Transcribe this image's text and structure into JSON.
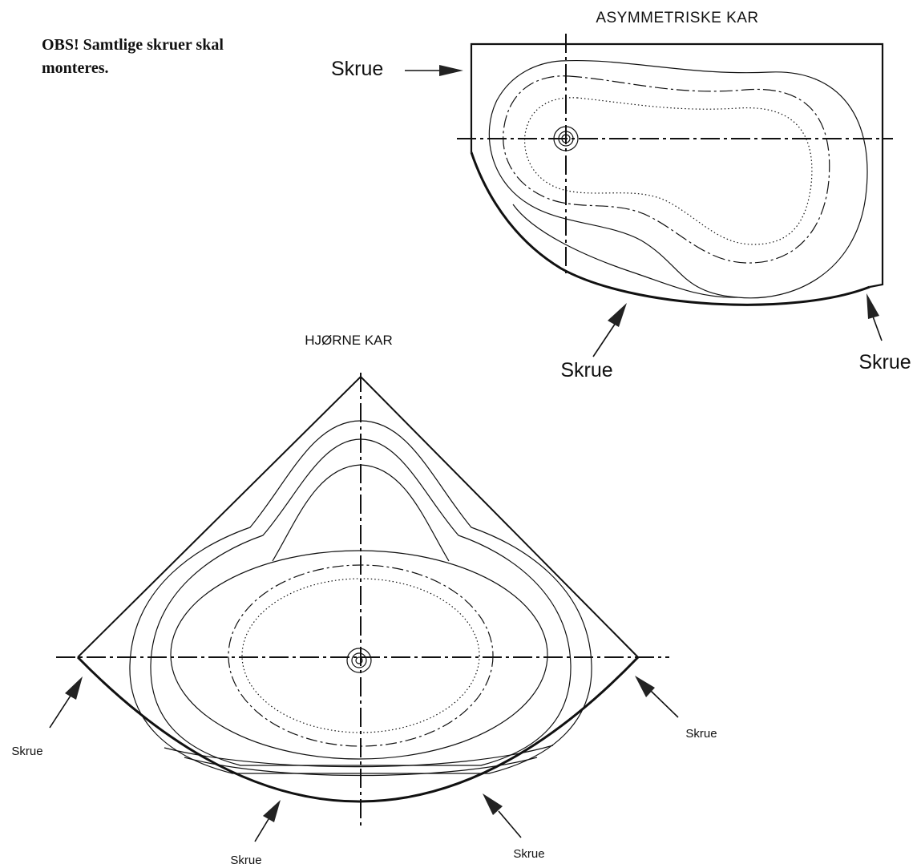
{
  "note": {
    "line1": "OBS! Samtlige skruer skal",
    "line2": "monteres."
  },
  "asymmetric": {
    "title": "ASYMMETRISKE KAR",
    "screw_left": "Skrue",
    "screw_bottom": "Skrue",
    "screw_right": "Skrue"
  },
  "corner": {
    "title": "HJØRNE KAR",
    "screw_left": "Skrue",
    "screw_right": "Skrue",
    "screw_bottom_left": "Skrue",
    "screw_bottom_right": "Skrue"
  },
  "colors": {
    "ink": "#111111",
    "background": "#ffffff"
  }
}
